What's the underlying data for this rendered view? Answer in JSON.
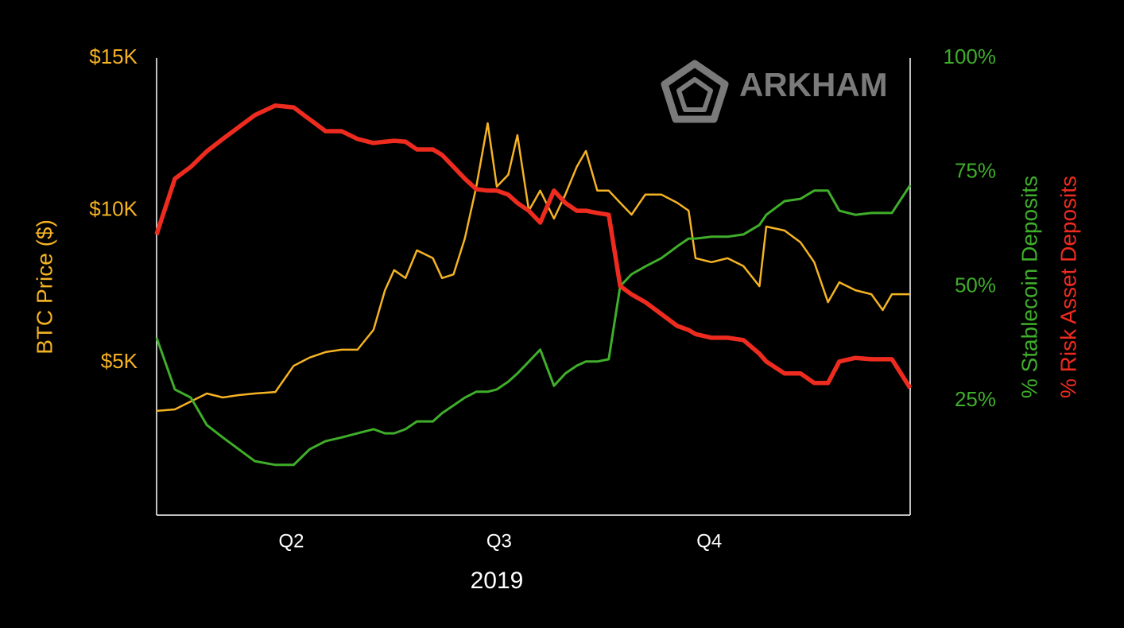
{
  "chart_data": {
    "type": "line",
    "watermark": "ARKHAM",
    "xlabel": "2019",
    "x": [
      32,
      40,
      47,
      54,
      61,
      68,
      75,
      84,
      92,
      99,
      106,
      113,
      120,
      127,
      132,
      136,
      141,
      146,
      153,
      157,
      162,
      167,
      172,
      177,
      181,
      186,
      190,
      195,
      200,
      206,
      211,
      216,
      220,
      225,
      230,
      235,
      240,
      246,
      253,
      260,
      265,
      268,
      275,
      282,
      289,
      296,
      299,
      307,
      314,
      320,
      326,
      331,
      338,
      345,
      350,
      354,
      362
    ],
    "xlim": [
      32,
      362
    ],
    "xticks": [
      {
        "value": 91,
        "label": "Q2"
      },
      {
        "value": 182,
        "label": "Q3"
      },
      {
        "value": 274,
        "label": "Q4"
      }
    ],
    "ylim": [
      0,
      15000
    ],
    "yticks": [
      {
        "value": 5000,
        "label": "$5K"
      },
      {
        "value": 10000,
        "label": "$10K"
      },
      {
        "value": 15000,
        "label": "$15K"
      }
    ],
    "y2lim": [
      0,
      100
    ],
    "y2ticks": [
      {
        "value": 25,
        "label": "25%"
      },
      {
        "value": 50,
        "label": "50%"
      },
      {
        "value": 75,
        "label": "75%"
      },
      {
        "value": 100,
        "label": "100%"
      }
    ],
    "series": [
      {
        "name": "BTC Price ($)",
        "color": "#f5b324",
        "values": [
          3420,
          3470,
          3730,
          3990,
          3860,
          3940,
          3990,
          4040,
          4900,
          5170,
          5350,
          5430,
          5430,
          6080,
          7380,
          8040,
          7780,
          8690,
          8430,
          7780,
          7900,
          9080,
          10780,
          12860,
          10780,
          11170,
          12470,
          9990,
          10650,
          9730,
          10520,
          11430,
          11950,
          10650,
          10650,
          10250,
          9860,
          10520,
          10520,
          10250,
          9990,
          8430,
          8300,
          8430,
          8170,
          7510,
          9470,
          9340,
          8950,
          8300,
          6990,
          7640,
          7380,
          7250,
          6730,
          7250,
          7250
        ]
      },
      {
        "name": "% Stablecoin Deposits",
        "color": "#3fae2a",
        "axis": "y2",
        "values": [
          38.8,
          27.5,
          25.7,
          19.7,
          17.0,
          14.4,
          11.8,
          11.0,
          11.0,
          14.4,
          16.2,
          17.0,
          17.9,
          18.8,
          17.9,
          17.9,
          18.8,
          20.5,
          20.5,
          22.3,
          24.0,
          25.7,
          27.0,
          27.0,
          27.5,
          29.2,
          31.0,
          33.6,
          36.2,
          28.3,
          31.0,
          32.7,
          33.6,
          33.6,
          34.1,
          50.1,
          52.7,
          54.4,
          56.2,
          58.8,
          60.5,
          60.5,
          60.9,
          60.9,
          61.4,
          63.5,
          65.7,
          68.7,
          69.2,
          71.0,
          71.0,
          66.6,
          65.7,
          66.1,
          66.1,
          66.1,
          72.2
        ]
      },
      {
        "name": "% Risk Asset Deposits",
        "color": "#ee2b1f",
        "axis": "y2",
        "values": [
          61.4,
          73.6,
          76.2,
          79.6,
          82.3,
          84.9,
          87.5,
          89.6,
          89.2,
          86.6,
          84.0,
          84.0,
          82.3,
          81.4,
          81.7,
          81.9,
          81.7,
          80.0,
          80.0,
          78.8,
          76.2,
          73.6,
          71.3,
          71.0,
          71.0,
          70.1,
          68.3,
          66.6,
          64.0,
          71.0,
          68.3,
          66.6,
          66.6,
          66.1,
          65.7,
          50.1,
          48.3,
          46.6,
          44.0,
          41.4,
          40.5,
          39.6,
          38.8,
          38.8,
          38.3,
          35.3,
          33.6,
          31.0,
          31.0,
          28.9,
          28.9,
          33.6,
          34.4,
          34.1,
          34.1,
          34.1,
          27.8
        ]
      }
    ]
  }
}
